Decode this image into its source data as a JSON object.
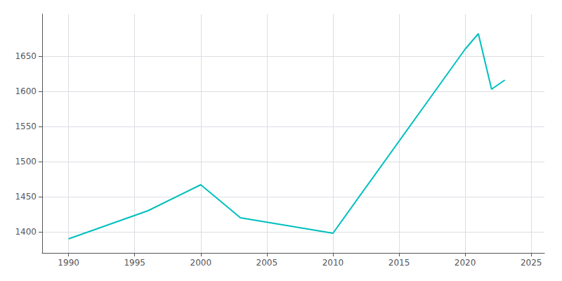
{
  "chart_data": {
    "type": "line",
    "x": [
      1990,
      1996,
      2000,
      2003,
      2010,
      2020,
      2021,
      2022,
      2023
    ],
    "values": [
      1390,
      1430,
      1467,
      1420,
      1398,
      1660,
      1682,
      1603,
      1616
    ],
    "color": "#00bfbf",
    "xlim": [
      1988,
      2026
    ],
    "ylim": [
      1370,
      1710
    ],
    "xticks": [
      1990,
      1995,
      2000,
      2005,
      2010,
      2015,
      2020,
      2025
    ],
    "yticks": [
      1400,
      1450,
      1500,
      1550,
      1600,
      1650
    ],
    "grid": true
  }
}
